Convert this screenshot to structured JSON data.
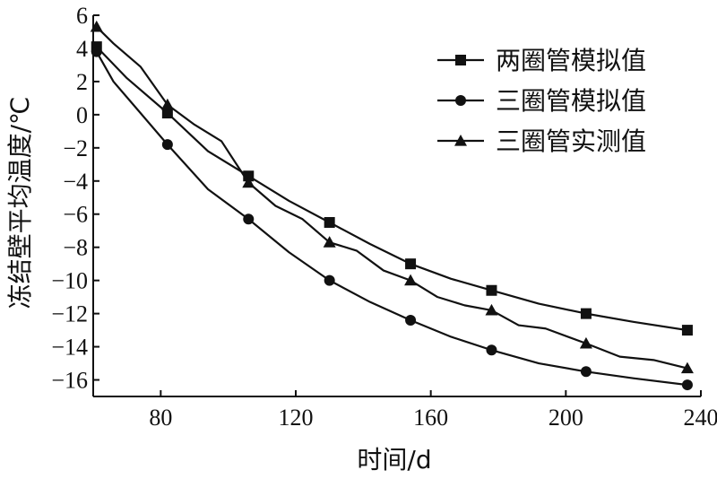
{
  "chart_data": {
    "type": "line",
    "xlabel": "时间/d",
    "ylabel": "冻结壁平均温度/℃",
    "xlim": [
      60,
      240
    ],
    "ylim": [
      -17,
      6
    ],
    "xticks": [
      80,
      120,
      160,
      200,
      240
    ],
    "yticks": [
      6,
      4,
      2,
      0,
      -2,
      -4,
      -6,
      -8,
      -10,
      -12,
      -14,
      -16
    ],
    "x_tick_labels": [
      "80",
      "120",
      "160",
      "200",
      "240"
    ],
    "y_tick_labels": [
      "6",
      "4",
      "2",
      "0",
      "−2",
      "−4",
      "−6",
      "−8",
      "−10",
      "−12",
      "−14",
      "−16"
    ],
    "legend_position": "top-right",
    "series": [
      {
        "name": "两圈管模拟值",
        "marker": "square",
        "x": [
          61,
          82,
          106,
          130,
          154,
          178,
          206,
          236
        ],
        "y": [
          4.1,
          0.1,
          -3.7,
          -6.5,
          -9.0,
          -10.6,
          -12.0,
          -13.0
        ],
        "x_line": [
          61,
          70,
          82,
          94,
          106,
          118,
          130,
          142,
          154,
          166,
          178,
          192,
          206,
          220,
          236
        ],
        "y_line": [
          4.1,
          2.2,
          0.1,
          -2.2,
          -3.7,
          -5.2,
          -6.5,
          -7.8,
          -9.0,
          -9.9,
          -10.6,
          -11.4,
          -12.0,
          -12.5,
          -13.0
        ]
      },
      {
        "name": "三圈管模拟值",
        "marker": "circle",
        "x": [
          61,
          82,
          106,
          130,
          154,
          178,
          206,
          236
        ],
        "y": [
          3.8,
          -1.8,
          -6.3,
          -10.0,
          -12.4,
          -14.2,
          -15.5,
          -16.3
        ],
        "x_line": [
          61,
          66,
          74,
          82,
          94,
          106,
          118,
          130,
          142,
          154,
          166,
          178,
          192,
          206,
          220,
          236
        ],
        "y_line": [
          3.8,
          2.0,
          0.1,
          -1.8,
          -4.5,
          -6.3,
          -8.3,
          -10.0,
          -11.3,
          -12.4,
          -13.4,
          -14.2,
          -15.0,
          -15.5,
          -15.9,
          -16.3
        ]
      },
      {
        "name": "三圈管实测值",
        "marker": "triangle",
        "x": [
          61,
          82,
          106,
          130,
          154,
          178,
          206,
          236
        ],
        "y": [
          5.3,
          0.6,
          -4.1,
          -7.7,
          -10.0,
          -11.8,
          -13.8,
          -15.3
        ],
        "x_line": [
          61,
          66,
          74,
          82,
          90,
          98,
          106,
          114,
          122,
          130,
          138,
          146,
          154,
          162,
          170,
          178,
          186,
          194,
          206,
          216,
          226,
          236
        ],
        "y_line": [
          5.3,
          4.3,
          2.9,
          0.6,
          -0.6,
          -1.6,
          -4.1,
          -5.5,
          -6.3,
          -7.7,
          -8.2,
          -9.4,
          -10.0,
          -11.0,
          -11.5,
          -11.8,
          -12.7,
          -12.9,
          -13.8,
          -14.6,
          -14.8,
          -15.3
        ]
      }
    ]
  }
}
